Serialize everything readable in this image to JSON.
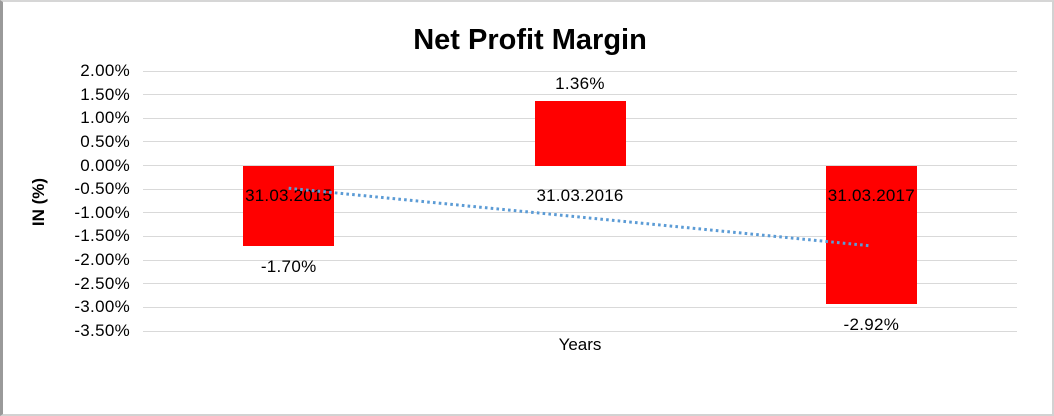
{
  "chart_data": {
    "type": "bar",
    "title": "Net Profit Margin",
    "xlabel": "Years",
    "ylabel": "IN (%)",
    "categories": [
      "31.03.2015",
      "31.03.2016",
      "31.03.2017"
    ],
    "values": [
      -1.7,
      1.36,
      -2.92
    ],
    "data_labels": [
      "-1.70%",
      "1.36%",
      "-2.92%"
    ],
    "yticks": [
      "2.00%",
      "1.50%",
      "1.00%",
      "0.50%",
      "0.00%",
      "-0.50%",
      "-1.00%",
      "-1.50%",
      "-2.00%",
      "-2.50%",
      "-3.00%",
      "-3.50%"
    ],
    "ytick_values": [
      2.0,
      1.5,
      1.0,
      0.5,
      0.0,
      -0.5,
      -1.0,
      -1.5,
      -2.0,
      -2.5,
      -3.0,
      -3.5
    ],
    "ylim": [
      -3.5,
      2.0
    ],
    "grid": "horizontal",
    "legend": "none",
    "bar_color": "#ff0000",
    "gridline_color": "#d9d9d9",
    "text_color": "#000000",
    "trendline": {
      "style": "dotted",
      "color": "#5b9bd5",
      "start_value": -0.48,
      "end_value": -1.7
    }
  }
}
